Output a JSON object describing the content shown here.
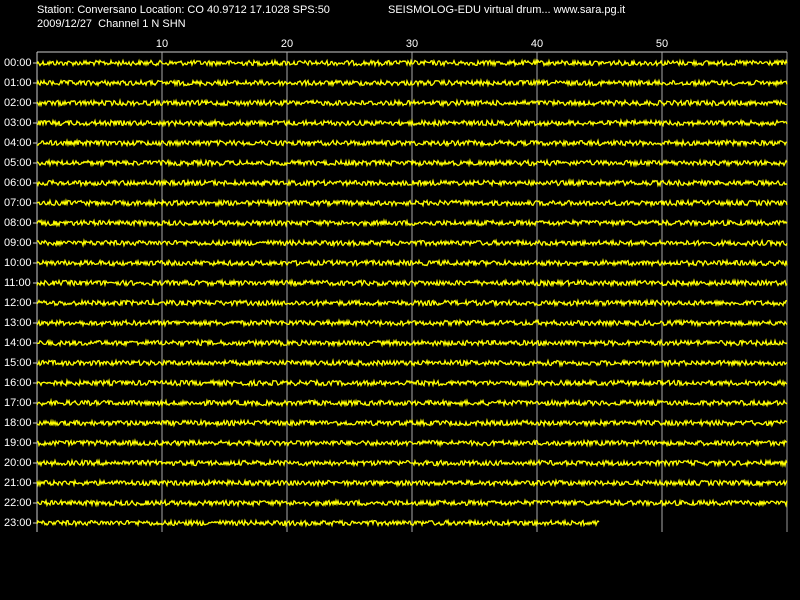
{
  "chart_data": {
    "type": "drum",
    "title": "Station: Conversano Location: CO 40.9712 17.1028 SPS:50",
    "header_right": "SEISMOLOG-EDU virtual drum... www.sara.pg.it",
    "subtitle": "2009/12/27  Channel 1 N SHN",
    "categories": [
      "00:00",
      "01:00",
      "02:00",
      "03:00",
      "04:00",
      "05:00",
      "06:00",
      "07:00",
      "08:00",
      "09:00",
      "10:00",
      "11:00",
      "12:00",
      "13:00",
      "14:00",
      "15:00",
      "16:00",
      "17:00",
      "18:00",
      "19:00",
      "20:00",
      "21:00",
      "22:00",
      "23:00"
    ],
    "values": [
      60,
      60,
      60,
      60,
      60,
      60,
      60,
      60,
      60,
      60,
      60,
      60,
      60,
      60,
      60,
      60,
      60,
      60,
      60,
      60,
      60,
      60,
      60,
      45
    ],
    "xlim": [
      0,
      60
    ],
    "xticks": [
      10,
      20,
      30,
      40,
      50
    ],
    "color": "#ffff00",
    "grid": true
  }
}
